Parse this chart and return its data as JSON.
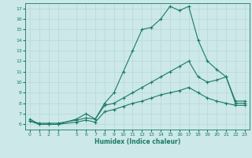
{
  "xlabel": "Humidex (Indice chaleur)",
  "ylabel": "",
  "background_color": "#cce8e8",
  "line_color": "#1a7a6a",
  "grid_color": "#b8d8d8",
  "xlim": [
    -0.5,
    23.5
  ],
  "ylim": [
    5.5,
    17.5
  ],
  "xticks": [
    0,
    1,
    2,
    3,
    5,
    6,
    7,
    8,
    9,
    10,
    11,
    12,
    13,
    14,
    15,
    16,
    17,
    18,
    19,
    20,
    21,
    22,
    23
  ],
  "yticks": [
    6,
    7,
    8,
    9,
    10,
    11,
    12,
    13,
    14,
    15,
    16,
    17
  ],
  "line1_x": [
    0,
    1,
    2,
    3,
    5,
    6,
    7,
    8,
    9,
    10,
    11,
    12,
    13,
    14,
    15,
    16,
    17,
    18,
    19,
    20,
    21,
    22,
    23
  ],
  "line1_y": [
    6.5,
    6.0,
    6.0,
    6.0,
    6.5,
    7.0,
    6.5,
    8.0,
    9.0,
    11.0,
    13.0,
    15.0,
    15.2,
    16.0,
    17.2,
    16.8,
    17.2,
    14.0,
    12.0,
    11.2,
    10.5,
    8.0,
    8.0
  ],
  "line2_x": [
    0,
    1,
    2,
    3,
    5,
    6,
    7,
    8,
    9,
    10,
    11,
    12,
    13,
    14,
    15,
    16,
    17,
    18,
    19,
    20,
    21,
    22,
    23
  ],
  "line2_y": [
    6.3,
    6.1,
    6.1,
    6.1,
    6.4,
    6.6,
    6.5,
    7.8,
    8.0,
    8.5,
    9.0,
    9.5,
    10.0,
    10.5,
    11.0,
    11.5,
    12.0,
    10.5,
    10.0,
    10.2,
    10.5,
    8.2,
    8.2
  ],
  "line3_x": [
    0,
    1,
    2,
    3,
    5,
    6,
    7,
    8,
    9,
    10,
    11,
    12,
    13,
    14,
    15,
    16,
    17,
    18,
    19,
    20,
    21,
    22,
    23
  ],
  "line3_y": [
    6.3,
    6.0,
    6.0,
    6.0,
    6.2,
    6.4,
    6.2,
    7.2,
    7.4,
    7.7,
    8.0,
    8.2,
    8.5,
    8.8,
    9.0,
    9.2,
    9.5,
    9.0,
    8.5,
    8.2,
    8.0,
    7.8,
    7.8
  ]
}
